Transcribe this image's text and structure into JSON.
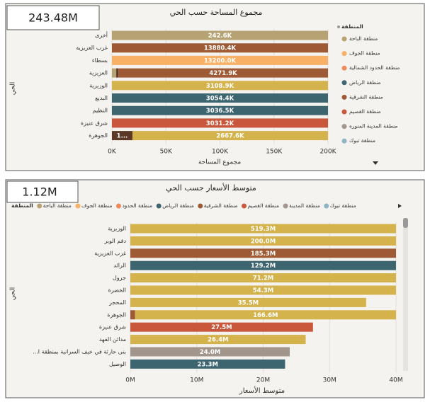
{
  "chart_data": [
    {
      "type": "bar",
      "kpi": "243.48M",
      "title": "مجموع المساحة حسب الحي",
      "xlabel": "مجموع المساحة",
      "ylabel": "الحي",
      "xlim": [
        0,
        200000
      ],
      "xticks": [
        {
          "value": 0,
          "label": "0K"
        },
        {
          "value": 50000,
          "label": "50K"
        },
        {
          "value": 100000,
          "label": "100K"
        },
        {
          "value": 150000,
          "label": "150K"
        },
        {
          "value": 200000,
          "label": "200K"
        }
      ],
      "legend": {
        "position": "right",
        "title": "المنطقة",
        "items": [
          {
            "name": "منطقة الباحة",
            "color": "#b7a273"
          },
          {
            "name": "منطقة الجوف",
            "color": "#f8b066"
          },
          {
            "name": "منطقة الحدود الشمالية",
            "color": "#ef8a5a"
          },
          {
            "name": "منطقة الرياض",
            "color": "#3d6570"
          },
          {
            "name": "منطقة الشرقية",
            "color": "#9e5a35"
          },
          {
            "name": "منطقة القصيم",
            "color": "#c9573b"
          },
          {
            "name": "منطقة المدينة المنوره",
            "color": "#a2958c"
          },
          {
            "name": "منطقة تبوك",
            "color": "#8fb4c4"
          }
        ]
      },
      "bars": [
        {
          "category": "أخرى",
          "segments": [
            {
              "value": 242600,
              "label": "242.6K",
              "color": "#b7a273"
            }
          ]
        },
        {
          "category": "غرب العزيزية",
          "segments": [
            {
              "value": 13880400,
              "label": "13880.4K",
              "color": "#9e5a35"
            }
          ]
        },
        {
          "category": "بسطاء",
          "segments": [
            {
              "value": 13200000,
              "label": "13200.0K",
              "color": "#f8b066"
            }
          ]
        },
        {
          "category": "العزيزية",
          "segments": [
            {
              "value": 4000,
              "color": "#b7a273"
            },
            {
              "value": 2000,
              "color": "#5b3926"
            },
            {
              "value": 4271900,
              "label": "4271.9K",
              "color": "#9e5a35"
            }
          ]
        },
        {
          "category": "الوزيرية",
          "segments": [
            {
              "value": 3108900,
              "label": "3108.9K",
              "color": "#d4b24c"
            }
          ]
        },
        {
          "category": "البديع",
          "segments": [
            {
              "value": 3054400,
              "label": "3054.4K",
              "color": "#3d6570"
            }
          ]
        },
        {
          "category": "النظيم",
          "segments": [
            {
              "value": 3036500,
              "label": "3036.5K",
              "color": "#3d6570"
            }
          ]
        },
        {
          "category": "شرق عنيزة",
          "segments": [
            {
              "value": 3031200,
              "label": "3031.2K",
              "color": "#c9573b"
            }
          ]
        },
        {
          "category": "الجوهرة",
          "segments": [
            {
              "value": 19000,
              "label": "1...",
              "color": "#5b3926"
            },
            {
              "value": 2667600,
              "label": "2667.6K",
              "color": "#d4b24c"
            }
          ]
        }
      ]
    },
    {
      "type": "bar",
      "kpi": "1.12M",
      "title": "متوسط الأسعار حسب الحي",
      "xlabel": "متوسط الأسعار",
      "ylabel": "الحي",
      "xlim": [
        0,
        40000000
      ],
      "xticks": [
        {
          "value": 0,
          "label": "0M"
        },
        {
          "value": 10000000,
          "label": "10M"
        },
        {
          "value": 20000000,
          "label": "20M"
        },
        {
          "value": 30000000,
          "label": "30M"
        },
        {
          "value": 40000000,
          "label": "40M"
        }
      ],
      "legend": {
        "position": "top",
        "title": "المنطقة",
        "items": [
          {
            "name": "منطقة الباحة",
            "color": "#b7a273"
          },
          {
            "name": "منطقة الجوف",
            "color": "#f8b066"
          },
          {
            "name": "منطقة الحدود",
            "color": "#ef8a5a"
          },
          {
            "name": "منطقة الرياض",
            "color": "#3d6570"
          },
          {
            "name": "منطقة الشرقية",
            "color": "#9e5a35"
          },
          {
            "name": "منطقة القصيم",
            "color": "#c9573b"
          },
          {
            "name": "منطقة المدينة",
            "color": "#a2958c"
          },
          {
            "name": "منطقة تبوك",
            "color": "#8fb4c4"
          }
        ]
      },
      "bars": [
        {
          "category": "الوزيرية",
          "segments": [
            {
              "value": 519300000,
              "label": "519.3M",
              "color": "#d4b24c"
            }
          ]
        },
        {
          "category": "دقم الوبر",
          "segments": [
            {
              "value": 200000000,
              "label": "200.0M",
              "color": "#d4b24c"
            }
          ]
        },
        {
          "category": "غرب العزيزية",
          "segments": [
            {
              "value": 185300000,
              "label": "185.3M",
              "color": "#9e5a35"
            }
          ]
        },
        {
          "category": "الرائد",
          "segments": [
            {
              "value": 129200000,
              "label": "129.2M",
              "color": "#3d6570"
            }
          ]
        },
        {
          "category": "جرول",
          "segments": [
            {
              "value": 71200000,
              "label": "71.2M",
              "color": "#d4b24c"
            }
          ]
        },
        {
          "category": "الخضرة",
          "segments": [
            {
              "value": 54300000,
              "label": "54.3M",
              "color": "#d4b24c"
            }
          ]
        },
        {
          "category": "المحجر",
          "segments": [
            {
              "value": 35500000,
              "label": "35.5M",
              "color": "#d4b24c"
            }
          ]
        },
        {
          "category": "الجوهرة",
          "segments": [
            {
              "value": 700000,
              "color": "#9e5a35"
            },
            {
              "value": 166600000,
              "label": "166.6M",
              "color": "#d4b24c"
            }
          ]
        },
        {
          "category": "شرق عنيزة",
          "segments": [
            {
              "value": 27500000,
              "label": "27.5M",
              "color": "#c9573b"
            }
          ]
        },
        {
          "category": "مدائن الفهد",
          "segments": [
            {
              "value": 26400000,
              "label": "26.4M",
              "color": "#d4b24c"
            }
          ]
        },
        {
          "category": "...بنى حارثة في خيف السرانية بمنطقة ا",
          "segments": [
            {
              "value": 24000000,
              "label": "24.0M",
              "color": "#a2958c"
            }
          ]
        },
        {
          "category": "الوصيل",
          "segments": [
            {
              "value": 23300000,
              "label": "23.3M",
              "color": "#3d6570"
            }
          ]
        }
      ]
    }
  ]
}
